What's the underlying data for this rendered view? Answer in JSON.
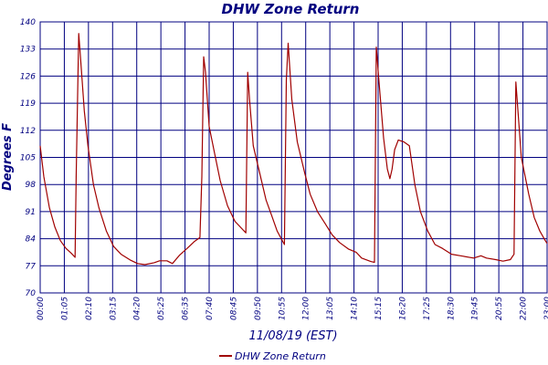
{
  "chart_data": {
    "type": "line",
    "title": "DHW Zone Return",
    "xlabel": "11/08/19 (EST)",
    "ylabel": "Degrees F",
    "ylim": [
      70,
      140
    ],
    "yticks": [
      "70",
      "77",
      "84",
      "91",
      "98",
      "105",
      "112",
      "119",
      "126",
      "133",
      "140"
    ],
    "xlim": [
      "00:00",
      "23:00"
    ],
    "xticks": [
      "00:00",
      "01:05",
      "02:10",
      "03:15",
      "04:20",
      "05:25",
      "06:35",
      "07:40",
      "08:45",
      "09:50",
      "10:55",
      "12:00",
      "13:05",
      "14:10",
      "15:15",
      "16:20",
      "17:25",
      "18:30",
      "19:45",
      "20:55",
      "22:00",
      "23:00"
    ],
    "grid": true,
    "legend_position": "bottom-center",
    "series": [
      {
        "name": "DHW Zone Return",
        "color": "#a00000",
        "points": [
          [
            "00:00",
            108
          ],
          [
            "00:10",
            100
          ],
          [
            "00:25",
            92
          ],
          [
            "00:40",
            87
          ],
          [
            "00:55",
            83.5
          ],
          [
            "01:10",
            81.5
          ],
          [
            "01:25",
            80.2
          ],
          [
            "01:35",
            79.2
          ],
          [
            "01:38",
            100
          ],
          [
            "01:45",
            137
          ],
          [
            "01:52",
            128
          ],
          [
            "02:00",
            117
          ],
          [
            "02:10",
            108
          ],
          [
            "02:25",
            98
          ],
          [
            "02:40",
            92
          ],
          [
            "03:00",
            86
          ],
          [
            "03:20",
            82
          ],
          [
            "03:40",
            80
          ],
          [
            "04:05",
            78.5
          ],
          [
            "04:25",
            77.6
          ],
          [
            "04:45",
            77.3
          ],
          [
            "05:10",
            77.8
          ],
          [
            "05:25",
            78.3
          ],
          [
            "05:45",
            78.3
          ],
          [
            "06:00",
            77.6
          ],
          [
            "06:20",
            79.8
          ],
          [
            "06:40",
            81.5
          ],
          [
            "07:00",
            83.3
          ],
          [
            "07:15",
            84.3
          ],
          [
            "07:20",
            100
          ],
          [
            "07:25",
            131
          ],
          [
            "07:30",
            127
          ],
          [
            "07:40",
            113
          ],
          [
            "07:55",
            106
          ],
          [
            "08:10",
            99
          ],
          [
            "08:30",
            92.5
          ],
          [
            "08:50",
            88.5
          ],
          [
            "09:10",
            86.5
          ],
          [
            "09:20",
            85.5
          ],
          [
            "09:25",
            127
          ],
          [
            "09:30",
            120
          ],
          [
            "09:40",
            108
          ],
          [
            "10:00",
            100
          ],
          [
            "10:15",
            94
          ],
          [
            "10:30",
            90
          ],
          [
            "10:45",
            86
          ],
          [
            "11:05",
            82.5
          ],
          [
            "11:10",
            125
          ],
          [
            "11:15",
            134.5
          ],
          [
            "11:25",
            120
          ],
          [
            "11:40",
            109
          ],
          [
            "12:00",
            101
          ],
          [
            "12:15",
            95.5
          ],
          [
            "12:35",
            91
          ],
          [
            "12:55",
            88
          ],
          [
            "13:15",
            85
          ],
          [
            "13:35",
            83
          ],
          [
            "14:00",
            81.3
          ],
          [
            "14:20",
            80.5
          ],
          [
            "14:35",
            79
          ],
          [
            "15:00",
            78.1
          ],
          [
            "15:10",
            77.9
          ],
          [
            "15:12",
            100
          ],
          [
            "15:15",
            133.5
          ],
          [
            "15:22",
            125
          ],
          [
            "15:35",
            110
          ],
          [
            "15:45",
            102
          ],
          [
            "15:52",
            99.5
          ],
          [
            "15:58",
            102
          ],
          [
            "16:05",
            107
          ],
          [
            "16:15",
            109.5
          ],
          [
            "16:30",
            109
          ],
          [
            "16:45",
            108
          ],
          [
            "17:00",
            98
          ],
          [
            "17:15",
            91
          ],
          [
            "17:35",
            86
          ],
          [
            "17:55",
            82.5
          ],
          [
            "18:15",
            81.5
          ],
          [
            "18:40",
            80
          ],
          [
            "19:10",
            79.5
          ],
          [
            "19:40",
            79
          ],
          [
            "20:00",
            79.6
          ],
          [
            "20:15",
            79
          ],
          [
            "20:40",
            78.6
          ],
          [
            "21:00",
            78.2
          ],
          [
            "21:20",
            78.6
          ],
          [
            "21:30",
            80
          ],
          [
            "21:35",
            124.5
          ],
          [
            "21:40",
            118
          ],
          [
            "21:50",
            105
          ],
          [
            "22:10",
            95.5
          ],
          [
            "22:25",
            89.5
          ],
          [
            "22:40",
            86
          ],
          [
            "22:55",
            83.5
          ],
          [
            "23:00",
            82.8
          ]
        ]
      }
    ]
  }
}
